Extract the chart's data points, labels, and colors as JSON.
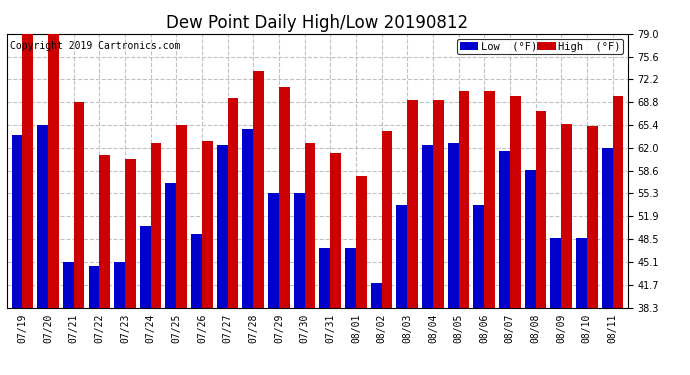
{
  "title": "Dew Point Daily High/Low 20190812",
  "copyright": "Copyright 2019 Cartronics.com",
  "dates": [
    "07/19",
    "07/20",
    "07/21",
    "07/22",
    "07/23",
    "07/24",
    "07/25",
    "07/26",
    "07/27",
    "07/28",
    "07/29",
    "07/30",
    "07/31",
    "08/01",
    "08/02",
    "08/03",
    "08/04",
    "08/05",
    "08/06",
    "08/07",
    "08/08",
    "08/09",
    "08/10",
    "08/11"
  ],
  "low_values": [
    64.0,
    65.4,
    45.1,
    44.5,
    45.1,
    50.4,
    56.8,
    49.3,
    62.5,
    64.8,
    55.3,
    55.3,
    47.2,
    47.1,
    42.0,
    53.5,
    62.5,
    62.8,
    53.5,
    61.5,
    58.8,
    48.6,
    48.7,
    62.0
  ],
  "high_values": [
    79.0,
    79.0,
    68.8,
    61.0,
    60.4,
    62.8,
    65.4,
    63.0,
    69.5,
    73.5,
    71.1,
    62.8,
    61.2,
    57.8,
    64.5,
    69.2,
    69.2,
    70.5,
    70.5,
    69.8,
    67.5,
    65.6,
    65.3,
    69.8
  ],
  "low_color": "#0000cc",
  "high_color": "#cc0000",
  "background_color": "#ffffff",
  "plot_bg_color": "#ffffff",
  "grid_color": "#c0c0c0",
  "ylim_min": 38.3,
  "ylim_max": 79.0,
  "yticks": [
    38.3,
    41.7,
    45.1,
    48.5,
    51.9,
    55.3,
    58.6,
    62.0,
    65.4,
    68.8,
    72.2,
    75.6,
    79.0
  ],
  "title_fontsize": 12,
  "copyright_fontsize": 7,
  "tick_fontsize": 7,
  "legend_fontsize": 7.5,
  "bar_width": 0.42
}
